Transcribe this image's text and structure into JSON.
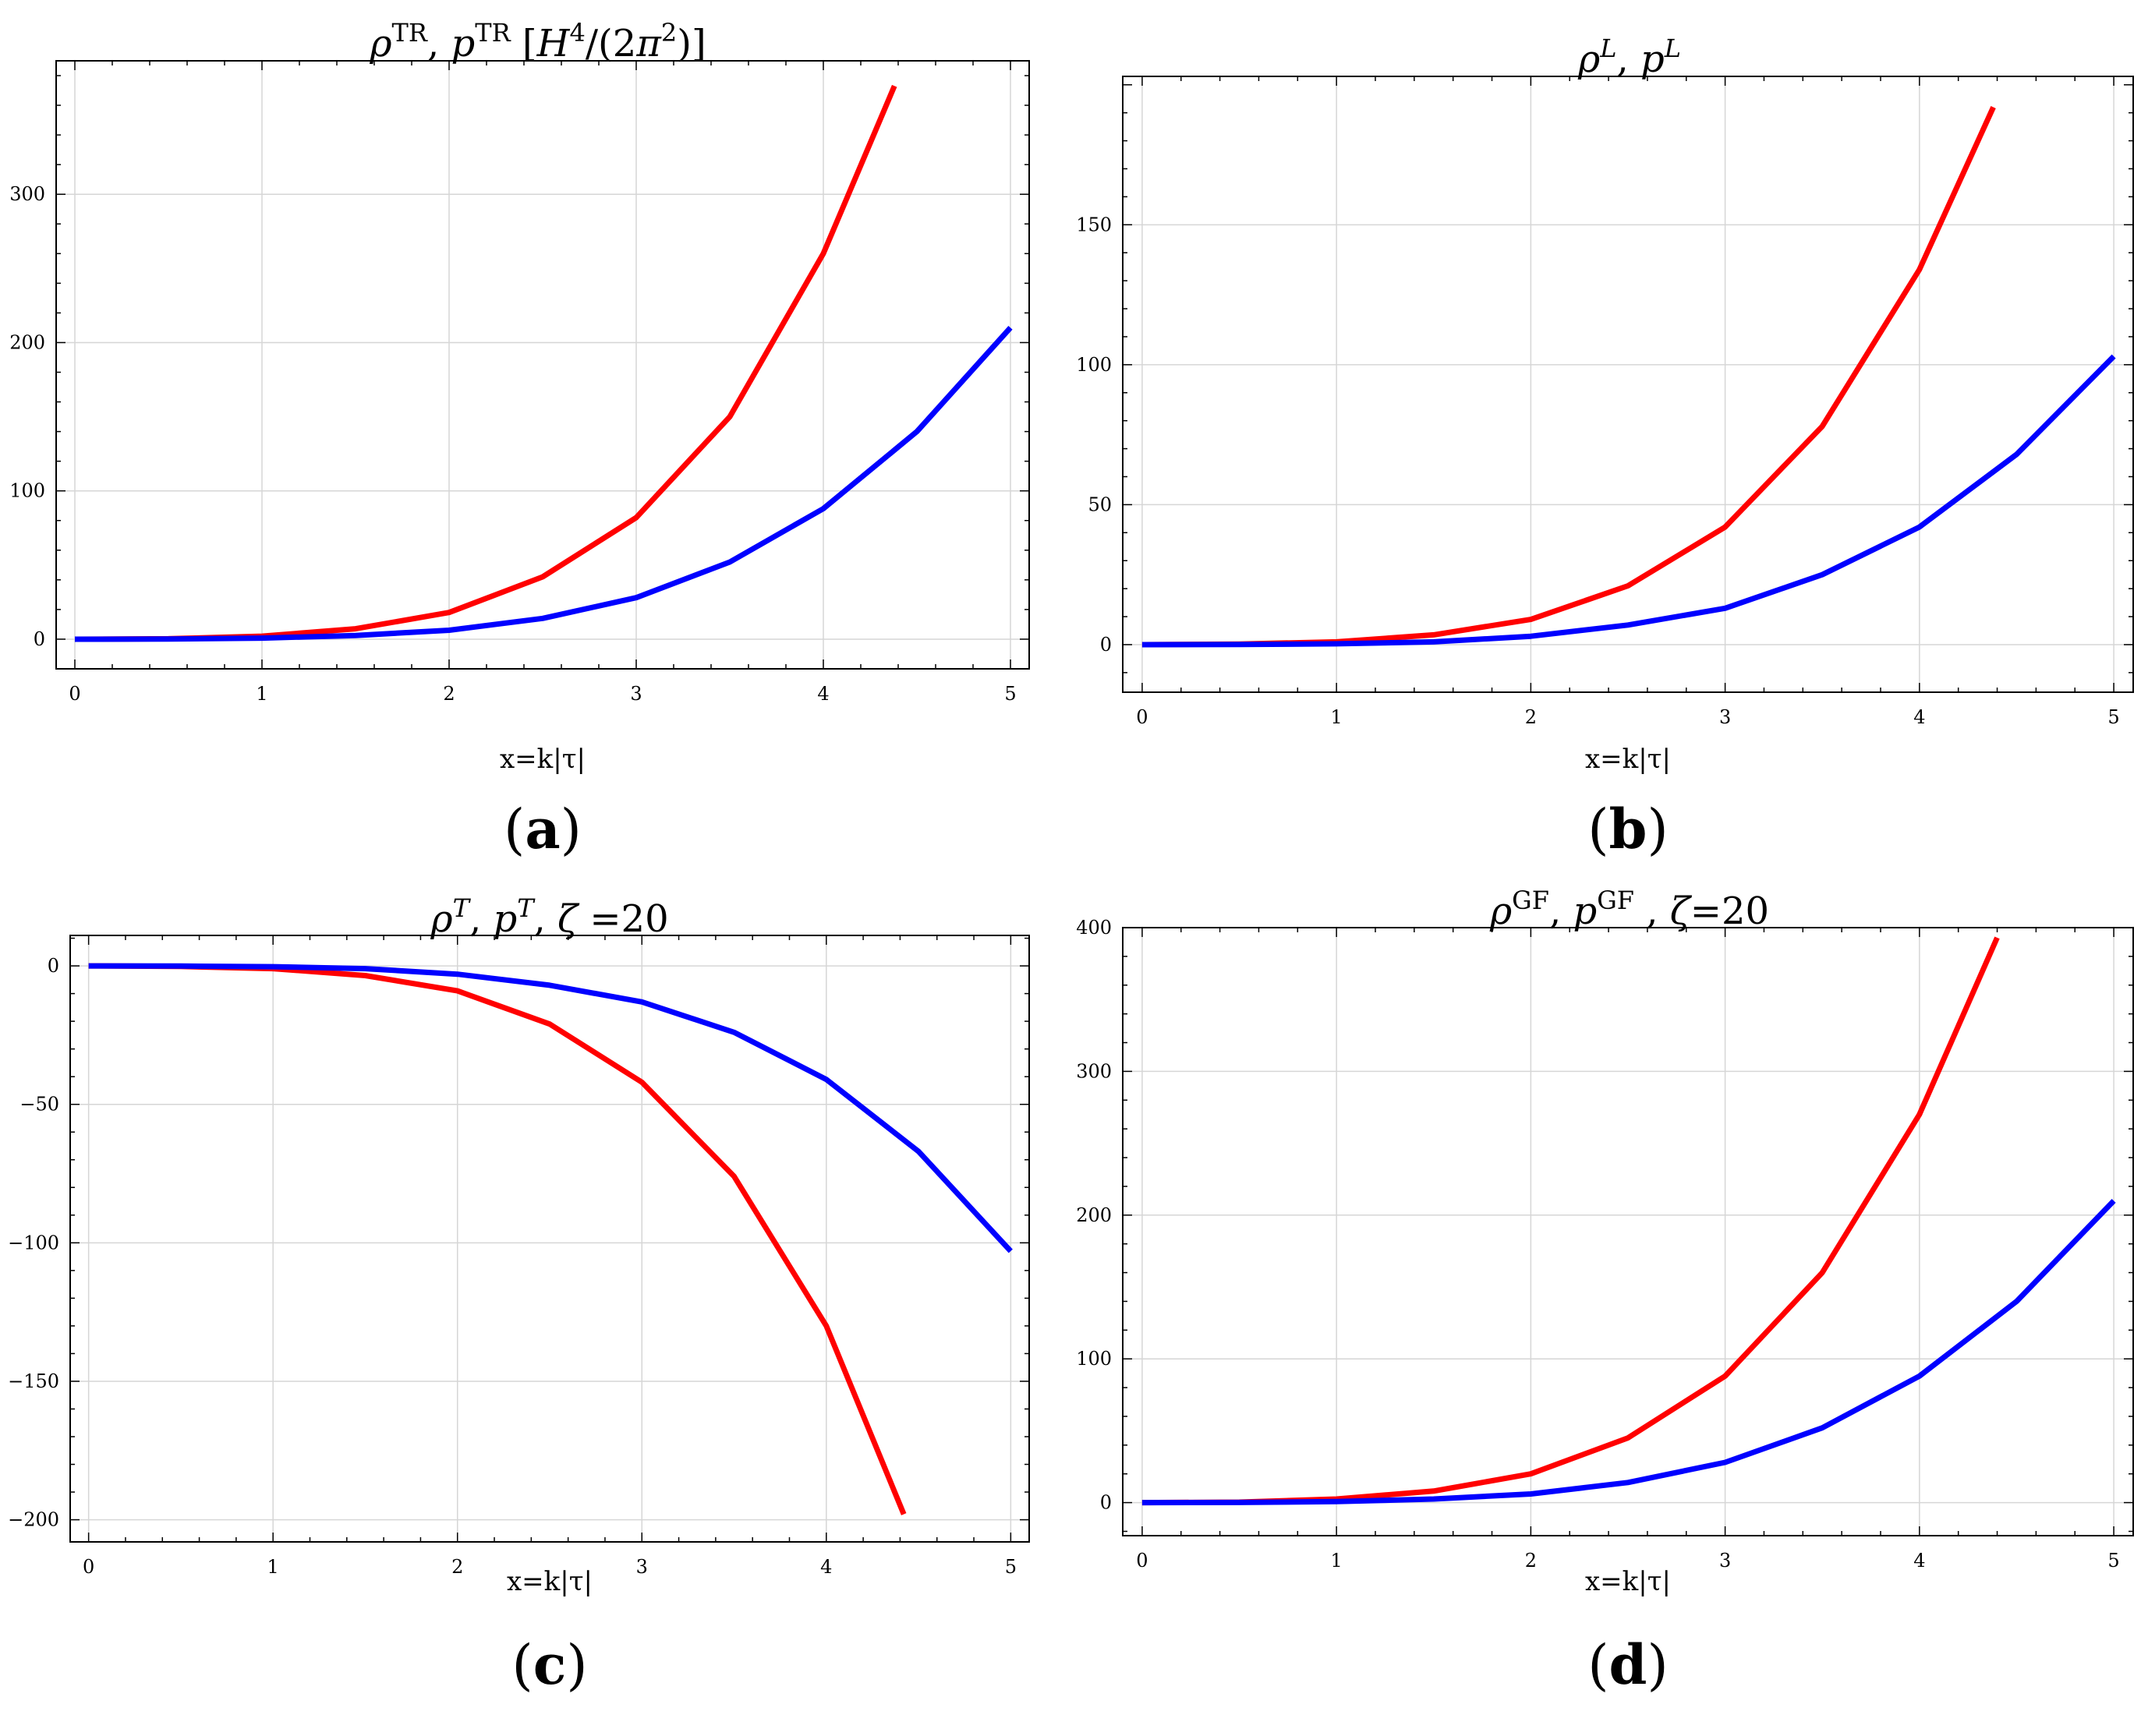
{
  "chart_data": [
    {
      "type": "line",
      "panel": "a",
      "panel_label": "(a)",
      "title_parts": [
        {
          "text": "ρ",
          "italic": true
        },
        {
          "text": "TR",
          "sup": true
        },
        {
          "text": ",  "
        },
        {
          "text": "p",
          "italic": true
        },
        {
          "text": "TR",
          "sup": true
        },
        {
          "text": "   ["
        },
        {
          "text": "H",
          "italic": true
        },
        {
          "text": "4",
          "sup": true
        },
        {
          "text": "/(2"
        },
        {
          "text": "π",
          "italic": true
        },
        {
          "text": "2",
          "sup": true
        },
        {
          "text": ")]"
        }
      ],
      "xlabel": "x=k|τ|",
      "xlim": [
        -0.1,
        5.1
      ],
      "ylim": [
        -20,
        390
      ],
      "xticks": [
        0,
        1,
        2,
        3,
        4,
        5
      ],
      "xtick_labels": [
        "0",
        "1",
        "2",
        "3",
        "4",
        "5"
      ],
      "yticks": [
        0,
        100,
        200,
        300
      ],
      "ytick_labels": [
        "0",
        "100",
        "200",
        "300"
      ],
      "grid": true,
      "series": [
        {
          "name": "rho",
          "color": "#ff0000",
          "x": [
            0,
            0.5,
            1,
            1.5,
            2,
            2.5,
            3,
            3.5,
            4,
            4.38
          ],
          "values": [
            0,
            0.3,
            2,
            7,
            18,
            42,
            82,
            150,
            260,
            373
          ]
        },
        {
          "name": "p",
          "color": "#0000ff",
          "x": [
            0,
            0.5,
            1,
            1.5,
            2,
            2.5,
            3,
            3.5,
            4,
            4.5,
            5
          ],
          "values": [
            0,
            0.1,
            0.7,
            2.5,
            6,
            14,
            28,
            52,
            88,
            140,
            210
          ]
        }
      ]
    },
    {
      "type": "line",
      "panel": "b",
      "panel_label": "(b)",
      "title_parts": [
        {
          "text": "ρ",
          "italic": true
        },
        {
          "text": "L",
          "sup": true,
          "italic": true
        },
        {
          "text": ",  "
        },
        {
          "text": "p",
          "italic": true
        },
        {
          "text": "L",
          "sup": true,
          "italic": true
        }
      ],
      "xlabel": "x=k|τ|",
      "xlim": [
        -0.1,
        5.1
      ],
      "ylim": [
        -17,
        203
      ],
      "xticks": [
        0,
        1,
        2,
        3,
        4,
        5
      ],
      "xtick_labels": [
        "0",
        "1",
        "2",
        "3",
        "4",
        "5"
      ],
      "yticks": [
        0,
        50,
        100,
        150
      ],
      "ytick_labels": [
        "0",
        "50",
        "100",
        "150"
      ],
      "grid": true,
      "series": [
        {
          "name": "rho",
          "color": "#ff0000",
          "x": [
            0,
            0.5,
            1,
            1.5,
            2,
            2.5,
            3,
            3.5,
            4,
            4.38
          ],
          "values": [
            0,
            0.2,
            1,
            3.5,
            9,
            21,
            42,
            78,
            134,
            192
          ]
        },
        {
          "name": "p",
          "color": "#0000ff",
          "x": [
            0,
            0.5,
            1,
            1.5,
            2,
            2.5,
            3,
            3.5,
            4,
            4.5,
            5
          ],
          "values": [
            0,
            0.05,
            0.3,
            1,
            3,
            7,
            13,
            25,
            42,
            68,
            103
          ]
        }
      ]
    },
    {
      "type": "line",
      "panel": "c",
      "panel_label": "(c)",
      "title_parts": [
        {
          "text": "ρ",
          "italic": true
        },
        {
          "text": "T",
          "sup": true,
          "italic": true
        },
        {
          "text": ",  "
        },
        {
          "text": "p",
          "italic": true
        },
        {
          "text": "T",
          "sup": true,
          "italic": true
        },
        {
          "text": ",  "
        },
        {
          "text": "ζ",
          "italic": true
        },
        {
          "text": " =20"
        }
      ],
      "xlabel": "x=k|τ|",
      "xlim": [
        -0.1,
        5.1
      ],
      "ylim": [
        -208,
        11
      ],
      "xticks": [
        0,
        1,
        2,
        3,
        4,
        5
      ],
      "xtick_labels": [
        "0",
        "1",
        "2",
        "3",
        "4",
        "5"
      ],
      "yticks": [
        0,
        -50,
        -100,
        -150,
        -200
      ],
      "ytick_labels": [
        "0",
        "-50",
        "-100",
        "-150",
        "-200"
      ],
      "grid": true,
      "series": [
        {
          "name": "rho",
          "color": "#ff0000",
          "x": [
            0,
            0.5,
            1,
            1.5,
            2,
            2.5,
            3,
            3.5,
            4,
            4.42
          ],
          "values": [
            0,
            -0.2,
            -1,
            -3.5,
            -9,
            -21,
            -42,
            -76,
            -130,
            -198
          ]
        },
        {
          "name": "p",
          "color": "#0000ff",
          "x": [
            0,
            0.5,
            1,
            1.5,
            2,
            2.5,
            3,
            3.5,
            4,
            4.5,
            5
          ],
          "values": [
            0,
            -0.05,
            -0.3,
            -1,
            -3,
            -7,
            -13,
            -24,
            -41,
            -67,
            -103
          ]
        }
      ]
    },
    {
      "type": "line",
      "panel": "d",
      "panel_label": "(d)",
      "title_parts": [
        {
          "text": "ρ",
          "italic": true
        },
        {
          "text": "GF",
          "sup": true
        },
        {
          "text": ",  "
        },
        {
          "text": "p",
          "italic": true
        },
        {
          "text": "GF",
          "sup": true
        },
        {
          "text": " ,  "
        },
        {
          "text": "ζ",
          "italic": true
        },
        {
          "text": "=20"
        }
      ],
      "xlabel": "x=k|τ|",
      "xlim": [
        -0.1,
        5.1
      ],
      "ylim": [
        -23,
        400
      ],
      "xticks": [
        0,
        1,
        2,
        3,
        4,
        5
      ],
      "xtick_labels": [
        "0",
        "1",
        "2",
        "3",
        "4",
        "5"
      ],
      "yticks": [
        0,
        100,
        200,
        300,
        400
      ],
      "ytick_labels": [
        "0",
        "100",
        "200",
        "300",
        "400"
      ],
      "grid": true,
      "series": [
        {
          "name": "rho",
          "color": "#ff0000",
          "x": [
            0,
            0.5,
            1,
            1.5,
            2,
            2.5,
            3,
            3.5,
            4,
            4.4
          ],
          "values": [
            0,
            0.3,
            2.5,
            8,
            20,
            45,
            88,
            160,
            270,
            393
          ]
        },
        {
          "name": "p",
          "color": "#0000ff",
          "x": [
            0,
            0.5,
            1,
            1.5,
            2,
            2.5,
            3,
            3.5,
            4,
            4.5,
            5
          ],
          "values": [
            0,
            0.1,
            0.7,
            2.5,
            6,
            14,
            28,
            52,
            88,
            140,
            210
          ]
        }
      ]
    }
  ]
}
